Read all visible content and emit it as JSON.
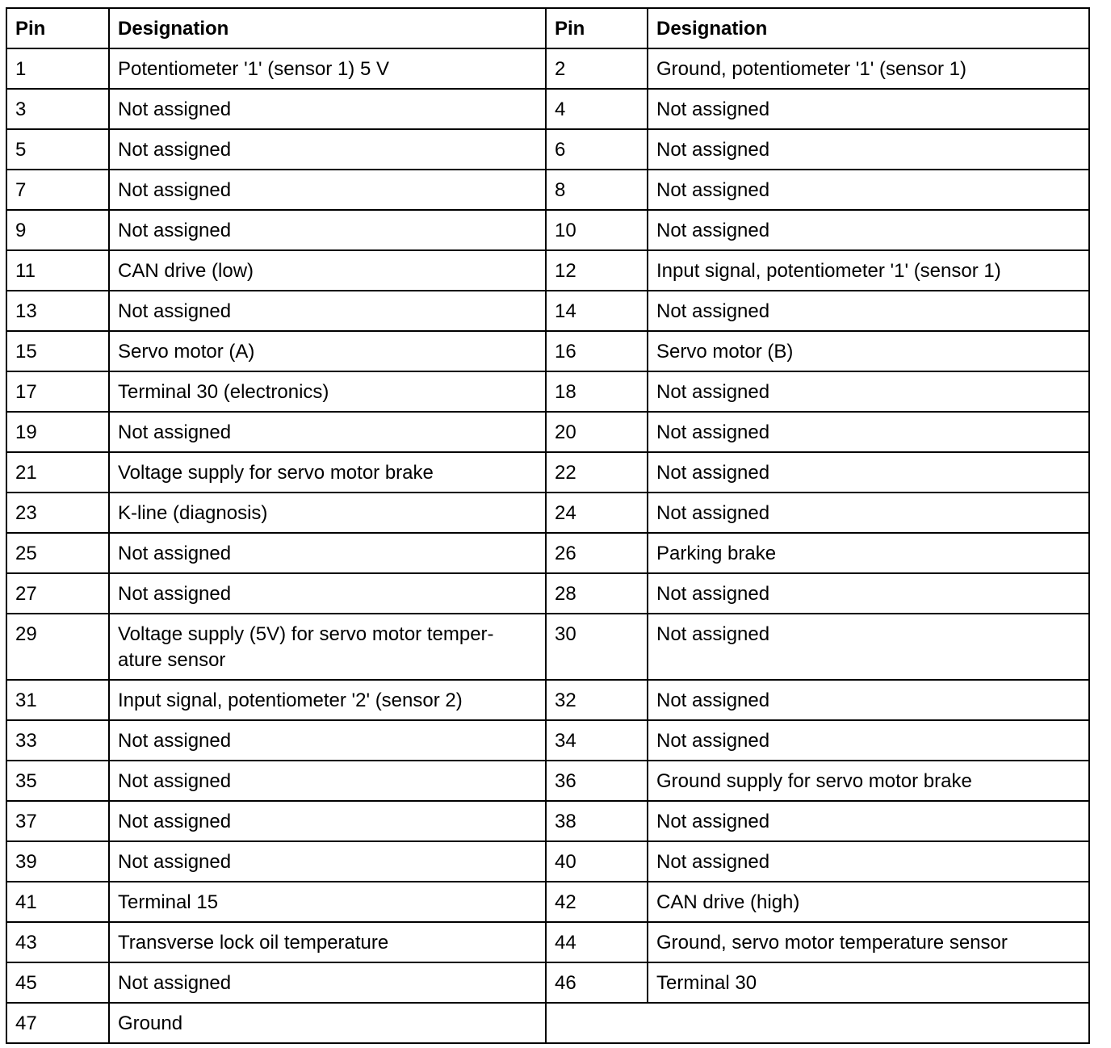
{
  "table": {
    "header": [
      "Pin",
      "Designation",
      "Pin",
      "Designation"
    ],
    "rows": [
      [
        "1",
        "Potentiometer '1' (sensor 1) 5 V",
        "2",
        "Ground, potentiometer '1' (sensor 1)"
      ],
      [
        "3",
        "Not assigned",
        "4",
        "Not assigned"
      ],
      [
        "5",
        "Not assigned",
        "6",
        "Not assigned"
      ],
      [
        "7",
        "Not assigned",
        "8",
        "Not assigned"
      ],
      [
        "9",
        "Not assigned",
        "10",
        "Not assigned"
      ],
      [
        "11",
        "CAN drive (low)",
        "12",
        "Input signal, potentiometer '1' (sensor 1)"
      ],
      [
        "13",
        "Not assigned",
        "14",
        "Not assigned"
      ],
      [
        "15",
        "Servo motor (A)",
        "16",
        "Servo motor (B)"
      ],
      [
        "17",
        "Terminal 30 (electronics)",
        "18",
        "Not assigned"
      ],
      [
        "19",
        "Not assigned",
        "20",
        "Not assigned"
      ],
      [
        "21",
        "Voltage supply for servo motor brake",
        "22",
        "Not assigned"
      ],
      [
        "23",
        "K-line (diagnosis)",
        "24",
        "Not assigned"
      ],
      [
        "25",
        "Not assigned",
        "26",
        "Parking brake"
      ],
      [
        "27",
        "Not assigned",
        "28",
        "Not assigned"
      ],
      [
        "29",
        [
          "Voltage supply (5V) for servo motor temper-",
          "ature sensor"
        ],
        "30",
        "Not assigned"
      ],
      [
        "31",
        "Input signal, potentiometer '2' (sensor 2)",
        "32",
        "Not assigned"
      ],
      [
        "33",
        "Not assigned",
        "34",
        "Not assigned"
      ],
      [
        "35",
        "Not assigned",
        "36",
        "Ground supply for servo motor brake"
      ],
      [
        "37",
        "Not assigned",
        "38",
        "Not assigned"
      ],
      [
        "39",
        "Not assigned",
        "40",
        "Not assigned"
      ],
      [
        "41",
        "Terminal 15",
        "42",
        "CAN drive (high)"
      ],
      [
        "43",
        "Transverse lock oil temperature",
        "44",
        "Ground, servo motor temperature sensor"
      ],
      [
        "45",
        "Not assigned",
        "46",
        "Terminal 30"
      ],
      [
        "47",
        "Ground"
      ]
    ]
  }
}
